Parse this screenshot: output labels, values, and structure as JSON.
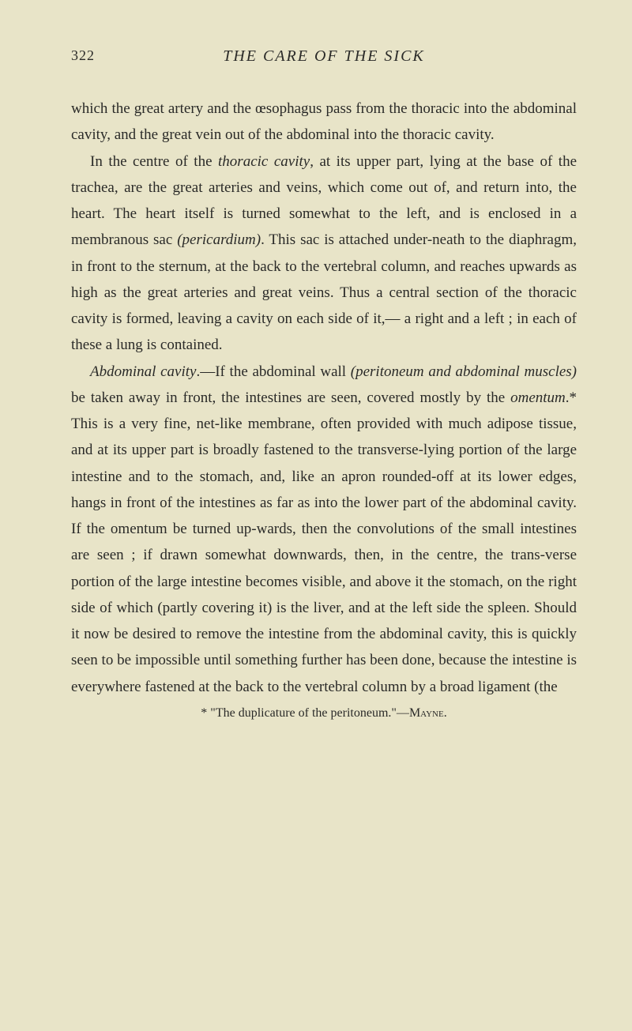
{
  "page_number": "322",
  "chapter_title": "THE CARE OF THE SICK",
  "paragraphs": {
    "p1": "which the great artery and the œsophagus pass from the thoracic into the abdominal cavity, and the great vein out of the abdominal into the thoracic cavity.",
    "p2_part1": "In the centre of the ",
    "p2_italic1": "thoracic cavity",
    "p2_part2": ", at its upper part, lying at the base of the trachea, are the great arteries and veins, which come out of, and return into, the heart. The heart itself is turned somewhat to the left, and is enclosed in a membranous sac ",
    "p2_italic2": "(pericardium)",
    "p2_part3": ". This sac is attached under-neath to the diaphragm, in front to the sternum, at the back to the vertebral column, and reaches upwards as high as the great arteries and great veins. Thus a central section of the thoracic cavity is formed, leaving a cavity on each side of it,— a right and a left ; in each of these a lung is contained.",
    "p3_italic1": "Abdominal cavity",
    "p3_part1": ".—If the abdominal wall ",
    "p3_italic2": "(peritoneum and abdominal muscles)",
    "p3_part2": " be taken away in front, the intestines are seen, covered mostly by the ",
    "p3_italic3": "omentum",
    "p3_part3": ".* This is a very fine, net-like membrane, often provided with much adipose tissue, and at its upper part is broadly fastened to the transverse-lying portion of the large intestine and to the stomach, and, like an apron rounded-off at its lower edges, hangs in front of the intestines as far as into the lower part of the abdominal cavity. If the omentum be turned up-wards, then the convolutions of the small intestines are seen ; if drawn somewhat downwards, then, in the centre, the trans-verse portion of the large intestine becomes visible, and above it the stomach, on the right side of which (partly covering it) is the liver, and at the left side the spleen. Should it now be desired to remove the intestine from the abdominal cavity, this is quickly seen to be impossible until something further has been done, because the intestine is everywhere fastened at the back to the vertebral column by a broad ligament (the"
  },
  "footnote_part1": "* \"The duplicature of the peritoneum.\"—",
  "footnote_author": "Mayne",
  "footnote_part2": ".",
  "colors": {
    "background": "#e8e4c8",
    "text": "#2a2a28"
  },
  "typography": {
    "body_fontsize": 19,
    "title_fontsize": 20,
    "footnote_fontsize": 16,
    "line_height": 1.75
  }
}
